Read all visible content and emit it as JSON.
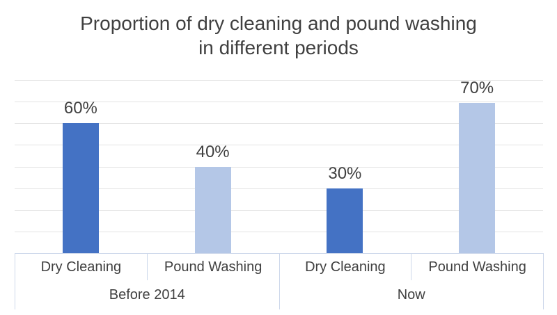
{
  "title": "Proportion of dry cleaning and pound washing in different periods",
  "colors": {
    "dry_cleaning_bar": "#4472C4",
    "pound_washing_bar": "#B4C7E7",
    "gridline": "#E3E3E3",
    "axis_border": "#CDD8EB",
    "text": "#404040"
  },
  "chart_data": {
    "type": "bar",
    "title": "Proportion of dry cleaning and pound washing in different periods",
    "xlabel": "",
    "ylabel": "",
    "ylim": [
      0,
      80
    ],
    "gridline_step": 10,
    "grid": true,
    "legend": "none",
    "y_axis_labels_visible": false,
    "data_labels_position": "outside-end",
    "groups": [
      {
        "label": "Before 2014",
        "bars": [
          {
            "category": "Dry Cleaning",
            "value": 60,
            "data_label": "60%",
            "color_key": "dry_cleaning_bar"
          },
          {
            "category": "Pound Washing",
            "value": 40,
            "data_label": "40%",
            "color_key": "pound_washing_bar"
          }
        ]
      },
      {
        "label": "Now",
        "bars": [
          {
            "category": "Dry Cleaning",
            "value": 30,
            "data_label": "30%",
            "color_key": "dry_cleaning_bar"
          },
          {
            "category": "Pound Washing",
            "value": 70,
            "data_label": "70%",
            "color_key": "pound_washing_bar"
          }
        ]
      }
    ]
  }
}
